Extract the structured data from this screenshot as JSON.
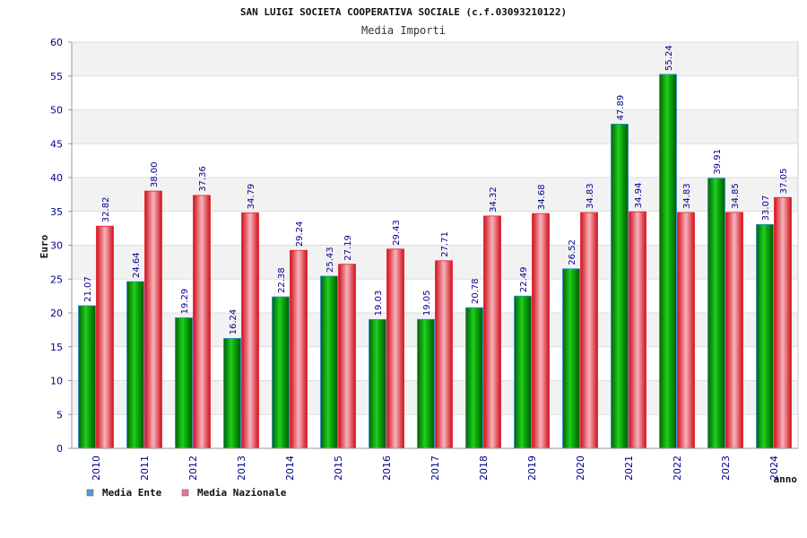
{
  "chart_data": {
    "type": "bar",
    "title": "SAN LUIGI SOCIETA COOPERATIVA SOCIALE (c.f.03093210122)",
    "subtitle": "Media Importi",
    "xlabel": "anno",
    "ylabel": "Euro",
    "ylim": [
      0,
      60
    ],
    "yticks": [
      0,
      5,
      10,
      15,
      20,
      25,
      30,
      35,
      40,
      45,
      50,
      55,
      60
    ],
    "grid": true,
    "legend_position": "bottom-left",
    "categories": [
      "2010",
      "2011",
      "2012",
      "2013",
      "2014",
      "2015",
      "2016",
      "2017",
      "2018",
      "2019",
      "2020",
      "2021",
      "2022",
      "2023",
      "2024"
    ],
    "series": [
      {
        "name": "Media Ente",
        "color": "#00a000",
        "legend_color": "#5b9bd5",
        "values": [
          21.07,
          24.64,
          19.29,
          16.24,
          22.38,
          25.43,
          19.03,
          19.05,
          20.78,
          22.49,
          26.52,
          47.89,
          55.24,
          39.91,
          33.07
        ],
        "labels": [
          "21.07",
          "24.64",
          "19.29",
          "16.24",
          "22.38",
          "25.43",
          "19.03",
          "19.05",
          "20.78",
          "22.49",
          "26.52",
          "47.89",
          "55.24",
          "39.91",
          "33.07"
        ]
      },
      {
        "name": "Media Nazionale",
        "color": "#e8202a",
        "legend_color": "#e07aa0",
        "values": [
          32.82,
          38.0,
          37.36,
          34.79,
          29.24,
          27.19,
          29.43,
          27.71,
          34.32,
          34.68,
          34.83,
          34.94,
          34.83,
          34.85,
          37.05
        ],
        "labels": [
          "32.82",
          "38.00",
          "37.36",
          "34.79",
          "29.24",
          "27.19",
          "29.43",
          "27.71",
          "34.32",
          "34.68",
          "34.83",
          "34.94",
          "34.83",
          "34.85",
          "37.05"
        ]
      }
    ]
  }
}
